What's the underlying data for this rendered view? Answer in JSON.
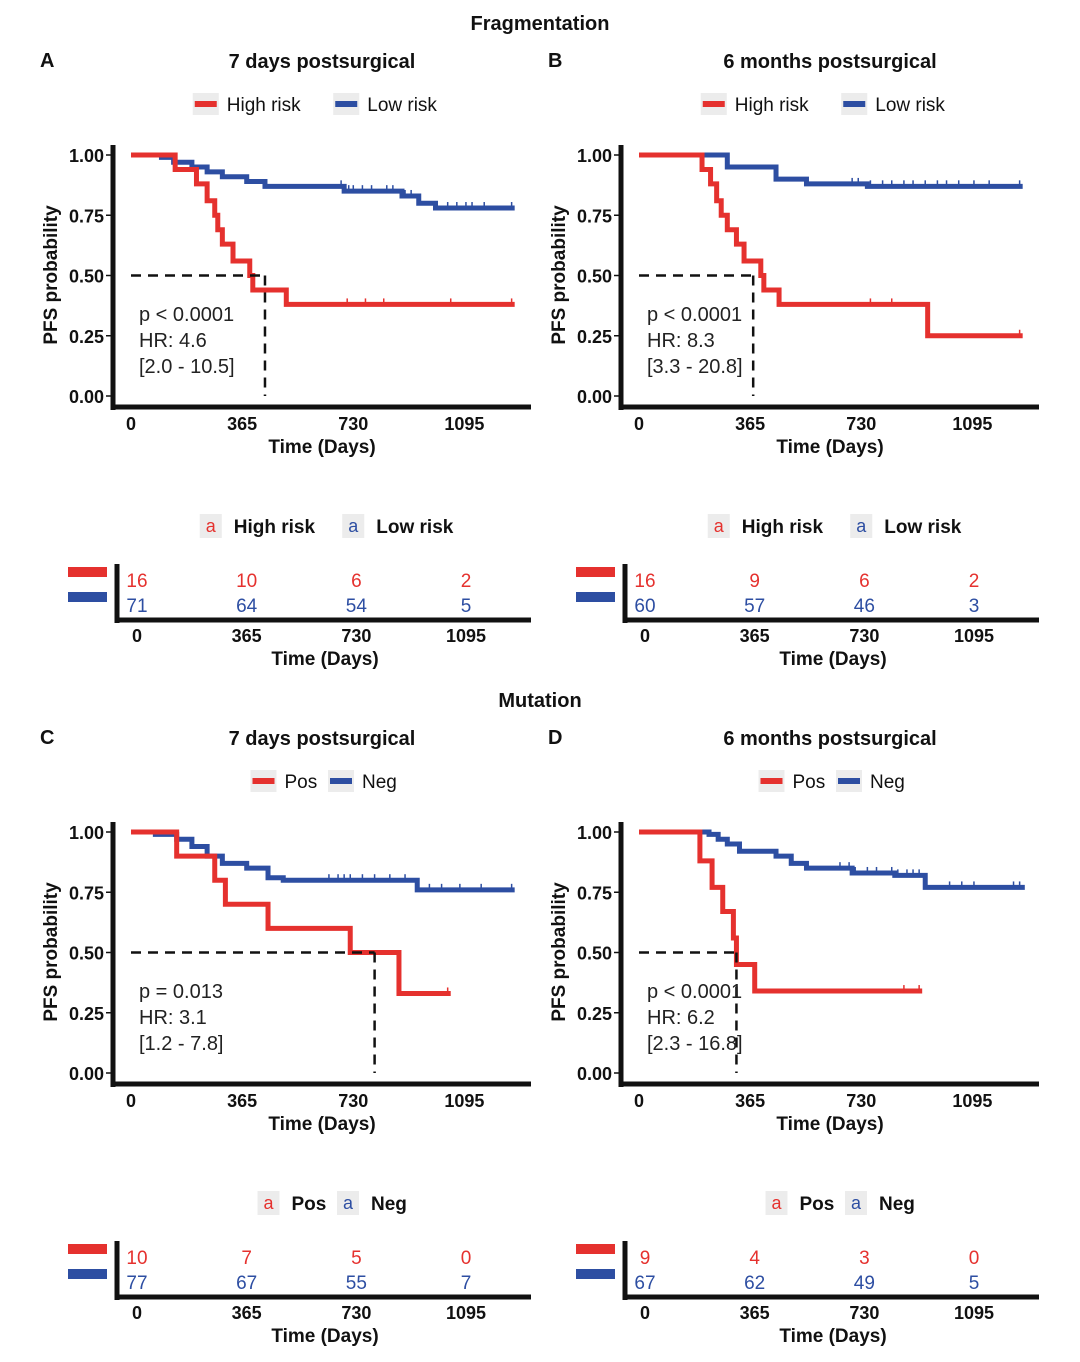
{
  "sections": {
    "top": "Fragmentation",
    "bottom": "Mutation"
  },
  "colors": {
    "high": "#e5312e",
    "low": "#2d4ea2",
    "axis": "#111111"
  },
  "chart_data": [
    {
      "type": "line",
      "panel": "A",
      "title": "7 days postsurgical",
      "xlabel": "Time (Days)",
      "ylabel": "PFS probability",
      "xticks": [
        0,
        365,
        730,
        1095
      ],
      "yticks": [
        "0.00",
        "0.25",
        "0.50",
        "0.75",
        "1.00"
      ],
      "ylim": [
        0,
        1
      ],
      "series": [
        {
          "name": "High risk",
          "color": "high",
          "steps": [
            [
              0,
              1
            ],
            [
              145,
              0.94
            ],
            [
              215,
              0.88
            ],
            [
              250,
              0.81
            ],
            [
              275,
              0.75
            ],
            [
              285,
              0.69
            ],
            [
              300,
              0.63
            ],
            [
              335,
              0.56
            ],
            [
              390,
              0.5
            ],
            [
              400,
              0.44
            ],
            [
              510,
              0.38
            ]
          ],
          "end": 1260,
          "censor": [
            710,
            770,
            830,
            1050,
            1250
          ]
        },
        {
          "name": "Low risk",
          "color": "low",
          "steps": [
            [
              0,
              1
            ],
            [
              100,
              0.99
            ],
            [
              140,
              0.97
            ],
            [
              200,
              0.95
            ],
            [
              250,
              0.93
            ],
            [
              300,
              0.91
            ],
            [
              380,
              0.89
            ],
            [
              440,
              0.87
            ],
            [
              700,
              0.85
            ],
            [
              890,
              0.83
            ],
            [
              945,
              0.8
            ],
            [
              1000,
              0.78
            ]
          ],
          "end": 1260,
          "censor": [
            690,
            700,
            715,
            730,
            760,
            790,
            840,
            860,
            900,
            920,
            1040,
            1070,
            1100,
            1120,
            1160,
            1250
          ]
        }
      ],
      "median_lines": [
        {
          "x": 440,
          "y": 0.5
        }
      ],
      "annotation": [
        "p < 0.0001",
        "HR: 4.6",
        "[2.0 - 10.5]"
      ],
      "risk_table": {
        "legend": [
          "High risk",
          "Low risk"
        ],
        "legend_glyph": "a",
        "times": [
          0,
          365,
          730,
          1095
        ],
        "rows": [
          [
            16,
            10,
            6,
            2
          ],
          [
            71,
            64,
            54,
            5
          ]
        ],
        "xlabel": "Time (Days)"
      }
    },
    {
      "type": "line",
      "panel": "B",
      "title": "6 months postsurgical",
      "xlabel": "Time (Days)",
      "ylabel": "PFS probability",
      "xticks": [
        0,
        365,
        730,
        1095
      ],
      "yticks": [
        "0.00",
        "0.25",
        "0.50",
        "0.75",
        "1.00"
      ],
      "ylim": [
        0,
        1
      ],
      "series": [
        {
          "name": "High risk",
          "color": "high",
          "steps": [
            [
              0,
              1
            ],
            [
              207,
              0.94
            ],
            [
              235,
              0.88
            ],
            [
              255,
              0.81
            ],
            [
              270,
              0.75
            ],
            [
              290,
              0.69
            ],
            [
              320,
              0.63
            ],
            [
              345,
              0.56
            ],
            [
              400,
              0.5
            ],
            [
              410,
              0.44
            ],
            [
              460,
              0.38
            ],
            [
              948,
              0.25
            ]
          ],
          "end": 1260,
          "censor": [
            760,
            830,
            1250
          ]
        },
        {
          "name": "Low risk",
          "color": "low",
          "steps": [
            [
              0,
              1
            ],
            [
              290,
              0.95
            ],
            [
              450,
              0.9
            ],
            [
              550,
              0.88
            ],
            [
              750,
              0.87
            ]
          ],
          "end": 1260,
          "censor": [
            700,
            720,
            760,
            800,
            830,
            870,
            900,
            940,
            980,
            1010,
            1050,
            1100,
            1150,
            1250
          ]
        }
      ],
      "median_lines": [
        {
          "x": 375,
          "y": 0.5
        }
      ],
      "annotation": [
        "p < 0.0001",
        "HR: 8.3",
        "[3.3 - 20.8]"
      ],
      "risk_table": {
        "legend": [
          "High risk",
          "Low risk"
        ],
        "legend_glyph": "a",
        "times": [
          0,
          365,
          730,
          1095
        ],
        "rows": [
          [
            16,
            9,
            6,
            2
          ],
          [
            60,
            57,
            46,
            3
          ]
        ],
        "xlabel": "Time (Days)"
      }
    },
    {
      "type": "line",
      "panel": "C",
      "title": "7 days postsurgical",
      "xlabel": "Time (Days)",
      "ylabel": "PFS probability",
      "xticks": [
        0,
        365,
        730,
        1095
      ],
      "yticks": [
        "0.00",
        "0.25",
        "0.50",
        "0.75",
        "1.00"
      ],
      "ylim": [
        0,
        1
      ],
      "series": [
        {
          "name": "Pos",
          "color": "high",
          "steps": [
            [
              0,
              1
            ],
            [
              150,
              0.9
            ],
            [
              275,
              0.8
            ],
            [
              310,
              0.7
            ],
            [
              450,
              0.6
            ],
            [
              720,
              0.5
            ],
            [
              880,
              0.33
            ]
          ],
          "end": 1050,
          "censor": [
            1040
          ]
        },
        {
          "name": "Neg",
          "color": "low",
          "steps": [
            [
              0,
              1
            ],
            [
              80,
              0.99
            ],
            [
              150,
              0.97
            ],
            [
              200,
              0.94
            ],
            [
              250,
              0.9
            ],
            [
              300,
              0.87
            ],
            [
              380,
              0.85
            ],
            [
              450,
              0.81
            ],
            [
              500,
              0.8
            ],
            [
              940,
              0.76
            ]
          ],
          "end": 1260,
          "censor": [
            650,
            680,
            700,
            720,
            760,
            800,
            850,
            900,
            980,
            1020,
            1080,
            1150,
            1250
          ]
        }
      ],
      "median_lines": [
        {
          "x": 800,
          "y": 0.5
        }
      ],
      "annotation": [
        "p = 0.013",
        "HR: 3.1",
        "[1.2 - 7.8]"
      ],
      "risk_table": {
        "legend": [
          "Pos",
          "Neg"
        ],
        "legend_glyph": "a",
        "times": [
          0,
          365,
          730,
          1095
        ],
        "rows": [
          [
            10,
            7,
            5,
            0
          ],
          [
            77,
            67,
            55,
            7
          ]
        ],
        "xlabel": "Time (Days)"
      }
    },
    {
      "type": "line",
      "panel": "D",
      "title": "6 months postsurgical",
      "xlabel": "Time (Days)",
      "ylabel": "PFS probability",
      "xticks": [
        0,
        365,
        730,
        1095
      ],
      "yticks": [
        "0.00",
        "0.25",
        "0.50",
        "0.75",
        "1.00"
      ],
      "ylim": [
        0,
        1
      ],
      "series": [
        {
          "name": "Pos",
          "color": "high",
          "steps": [
            [
              0,
              1
            ],
            [
              200,
              0.88
            ],
            [
              240,
              0.77
            ],
            [
              275,
              0.67
            ],
            [
              310,
              0.56
            ],
            [
              320,
              0.45
            ],
            [
              380,
              0.34
            ]
          ],
          "end": 930,
          "censor": [
            870,
            920
          ]
        },
        {
          "name": "Neg",
          "color": "low",
          "steps": [
            [
              0,
              1
            ],
            [
              230,
              0.99
            ],
            [
              260,
              0.97
            ],
            [
              290,
              0.95
            ],
            [
              330,
              0.92
            ],
            [
              450,
              0.9
            ],
            [
              500,
              0.87
            ],
            [
              550,
              0.85
            ],
            [
              700,
              0.83
            ],
            [
              840,
              0.82
            ],
            [
              940,
              0.77
            ]
          ],
          "end": 1267,
          "censor": [
            660,
            690,
            710,
            750,
            780,
            830,
            850,
            880,
            900,
            920,
            1020,
            1060,
            1100,
            1230,
            1250
          ]
        }
      ],
      "median_lines": [
        {
          "x": 320,
          "y": 0.5
        }
      ],
      "annotation": [
        "p < 0.0001",
        "HR: 6.2",
        "[2.3 - 16.8]"
      ],
      "risk_table": {
        "legend": [
          "Pos",
          "Neg"
        ],
        "legend_glyph": "a",
        "times": [
          0,
          365,
          730,
          1095
        ],
        "rows": [
          [
            9,
            4,
            3,
            0
          ],
          [
            67,
            62,
            49,
            5
          ]
        ],
        "xlabel": "Time (Days)"
      }
    }
  ]
}
